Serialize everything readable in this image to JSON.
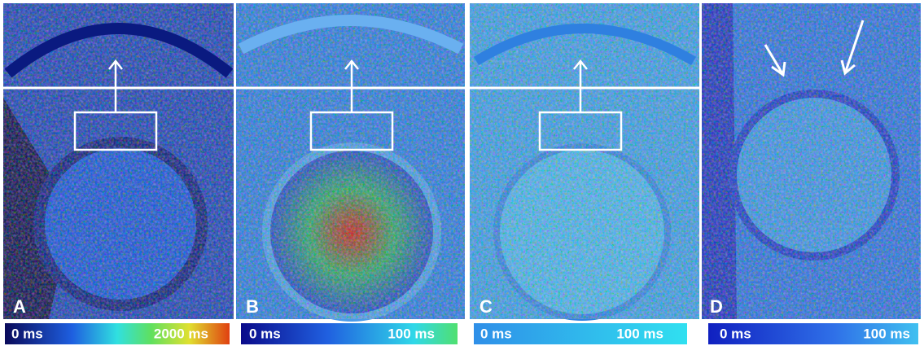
{
  "panels": [
    {
      "label": "A",
      "colorbar": {
        "min_label": "0 ms",
        "max_label": "2000 ms"
      }
    },
    {
      "label": "B",
      "colorbar": {
        "min_label": "0 ms",
        "max_label": "100 ms"
      }
    },
    {
      "label": "C",
      "colorbar": {
        "min_label": "0 ms",
        "max_label": "100 ms"
      }
    },
    {
      "label": "D",
      "colorbar": {
        "min_label": "0 ms",
        "max_label": "100 ms"
      }
    }
  ]
}
